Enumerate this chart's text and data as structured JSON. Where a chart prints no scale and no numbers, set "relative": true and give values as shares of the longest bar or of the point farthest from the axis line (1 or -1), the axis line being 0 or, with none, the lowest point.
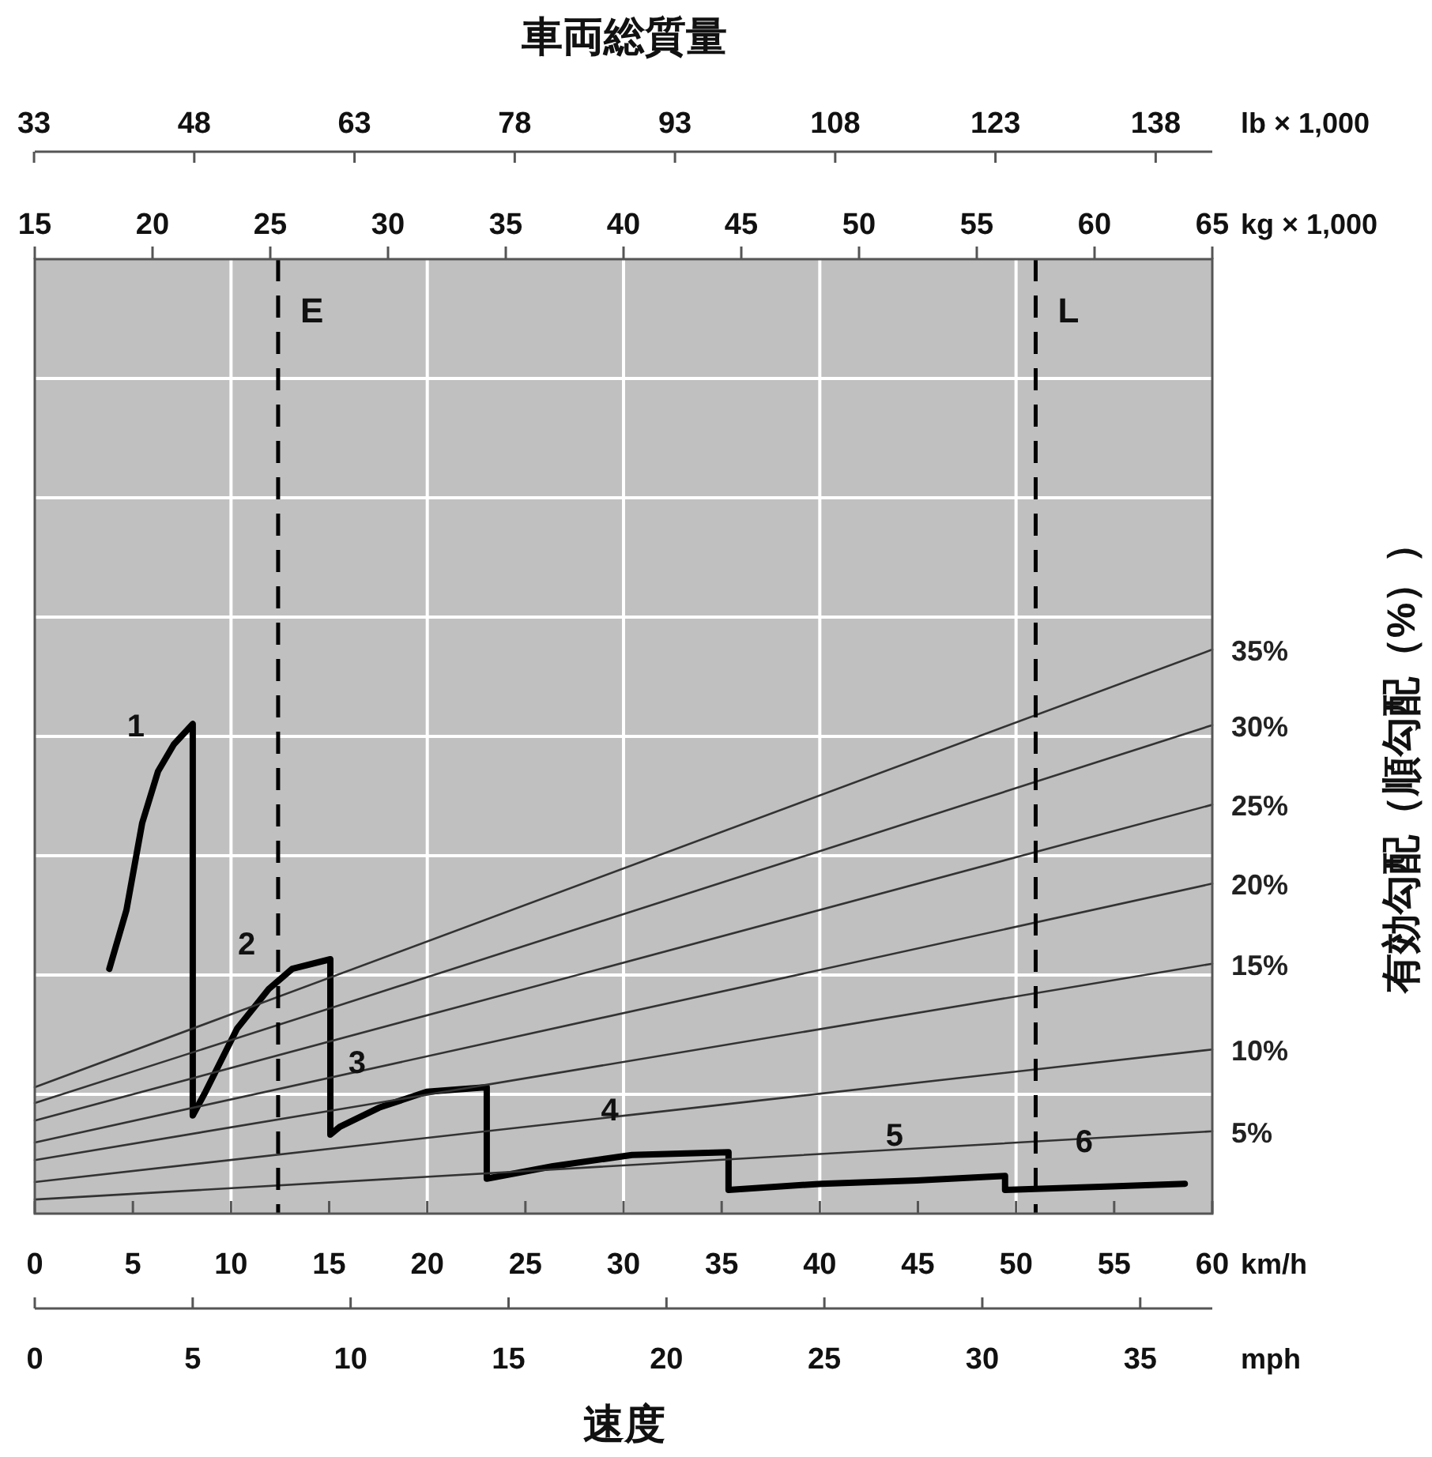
{
  "chart_data": {
    "type": "line",
    "relative": true,
    "title": "車両総質量",
    "xlabel": "速度",
    "ylabel": "有効勾配（順勾配（%））",
    "xlim": [
      0,
      60
    ],
    "xticks": [
      0,
      5,
      10,
      15,
      20,
      25,
      30,
      35,
      40,
      45,
      50,
      55,
      60
    ],
    "grid": true,
    "annotations": [
      "km/h",
      "mph",
      "kg × 1,000",
      "lb × 1,000",
      "0",
      "5",
      "10",
      "15",
      "20",
      "25",
      "30",
      "35",
      "15",
      "20",
      "25",
      "30",
      "35",
      "40",
      "45",
      "50",
      "55",
      "60",
      "65",
      "33",
      "48",
      "63",
      "78",
      "93",
      "108",
      "123",
      "138",
      "1",
      "2",
      "3",
      "4",
      "5",
      "6"
    ],
    "ref_lines": [
      {
        "axis": "x",
        "value": 12.4,
        "label": "E",
        "line_style": "dashed",
        "color": "#000000"
      },
      {
        "axis": "x",
        "value": 51.0,
        "label": "L",
        "line_style": "dashed",
        "color": "#000000"
      }
    ],
    "series": [
      {
        "color": "#000000",
        "x": [
          3.8,
          4.67,
          5.47,
          6.28,
          7.09,
          8.05,
          8.05,
          8.7,
          10.31,
          11.92,
          13.12,
          15.06,
          15.06,
          15.54,
          17.55,
          19.97,
          23.03,
          23.03,
          26.4,
          30.43,
          35.35,
          35.35,
          40.1,
          44.93,
          49.44,
          49.44,
          54.6,
          58.6
        ],
        "values": [
          0.434,
          0.538,
          0.692,
          0.784,
          0.832,
          0.868,
          0.174,
          0.216,
          0.328,
          0.398,
          0.434,
          0.451,
          0.14,
          0.154,
          0.188,
          0.216,
          0.224,
          0.062,
          0.084,
          0.104,
          0.109,
          0.042,
          0.053,
          0.059,
          0.067,
          0.042,
          0.048,
          0.053
        ]
      },
      {
        "name": "35%",
        "color": "#333333",
        "x": [
          0,
          60
        ],
        "values": [
          0.224,
          1
        ]
      },
      {
        "name": "30%",
        "color": "#333333",
        "x": [
          0,
          60
        ],
        "values": [
          0.196,
          0.866
        ]
      },
      {
        "name": "25%",
        "color": "#333333",
        "x": [
          0,
          60
        ],
        "values": [
          0.165,
          0.725
        ]
      },
      {
        "name": "20%",
        "color": "#333333",
        "x": [
          0,
          60
        ],
        "values": [
          0.126,
          0.585
        ]
      },
      {
        "name": "15%",
        "color": "#333333",
        "x": [
          0,
          60
        ],
        "values": [
          0.095,
          0.443
        ]
      },
      {
        "name": "10%",
        "color": "#333333",
        "x": [
          0,
          60
        ],
        "values": [
          0.056,
          0.291
        ]
      },
      {
        "name": "5%",
        "color": "#333333",
        "x": [
          0,
          60
        ],
        "values": [
          0.025,
          0.146
        ]
      }
    ]
  }
}
